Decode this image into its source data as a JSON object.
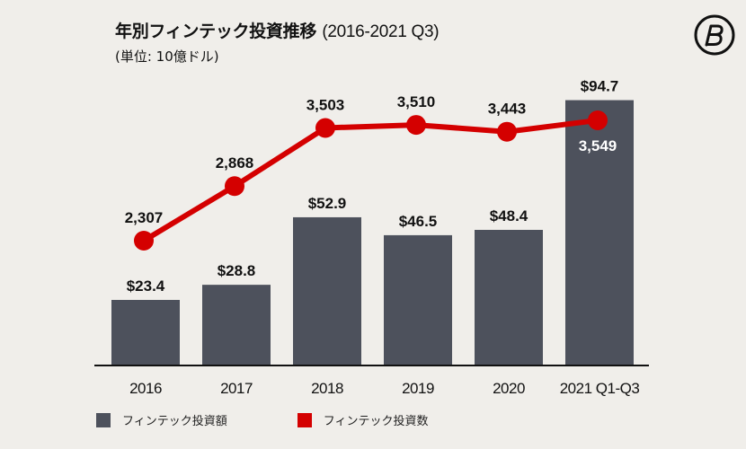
{
  "header": {
    "title_main": "年別フィンテック投資推移",
    "title_range": "(2016-2021 Q3)",
    "subtitle": "(単位: 10億ドル)"
  },
  "logo": {
    "icon": "brand-b-circle-icon"
  },
  "colors": {
    "background": "#f0eeea",
    "bar": "#4d515c",
    "line": "#d40000",
    "axis": "#111111"
  },
  "legend": {
    "items": [
      {
        "label": "フィンテック投資額",
        "color": "#4d515c"
      },
      {
        "label": "フィンテック投資数",
        "color": "#d40000"
      }
    ],
    "position": "bottom-left"
  },
  "chart_data": {
    "type": "bar",
    "title": "年別フィンテック投資推移 (2016-2021 Q3)",
    "subtitle": "(単位: 10億ドル)",
    "categories": [
      "2016",
      "2017",
      "2018",
      "2019",
      "2020",
      "2021 Q1-Q3"
    ],
    "series": [
      {
        "name": "フィンテック投資額",
        "type": "bar",
        "unit": "10億ドル",
        "values": [
          23.4,
          28.8,
          52.9,
          46.5,
          48.4,
          94.7
        ],
        "labels": [
          "$23.4",
          "$28.8",
          "$52.9",
          "$46.5",
          "$48.4",
          "$94.7"
        ]
      },
      {
        "name": "フィンテック投資数",
        "type": "line",
        "values": [
          2307,
          2868,
          3503,
          3510,
          3443,
          3549
        ],
        "labels": [
          "2,307",
          "2,868",
          "3,503",
          "3,510",
          "3,443",
          "3,549"
        ]
      }
    ],
    "grid": false,
    "legend": "bottom-left"
  }
}
